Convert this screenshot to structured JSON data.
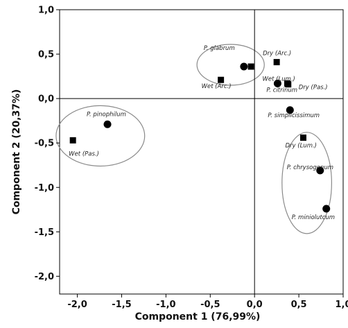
{
  "chart_data": {
    "type": "scatter",
    "xlabel": "Component 1 (76,99%)",
    "ylabel": "Component 2 (20,37%)",
    "xlim": [
      -2.2,
      1.0
    ],
    "ylim": [
      -2.2,
      1.0
    ],
    "xticks": [
      "-2,0",
      "-1,5",
      "-1,0",
      "-0,5",
      "0,0",
      "0,5",
      "1,0"
    ],
    "yticks": [
      "1,0",
      "0,5",
      "0,0",
      "-0,5",
      "-1,0",
      "-1,5",
      "-2,0"
    ],
    "grid": false,
    "reference_lines": {
      "x": 0,
      "y": 0
    },
    "series": [
      {
        "marker": "circle",
        "points": [
          {
            "label": "P. glabrum",
            "x": -0.12,
            "y": 0.36
          },
          {
            "label": "P. citrinum",
            "x": 0.26,
            "y": 0.17
          },
          {
            "label": "P. pinophilum",
            "x": -1.66,
            "y": -0.29
          },
          {
            "label": "P. simplicissimum",
            "x": 0.4,
            "y": -0.13
          },
          {
            "label": "P. chrysogenum",
            "x": 0.74,
            "y": -0.81
          },
          {
            "label": "P. miniolutcum",
            "x": 0.81,
            "y": -1.24
          }
        ]
      },
      {
        "marker": "square",
        "points": [
          {
            "label": "",
            "x": -0.04,
            "y": 0.36
          },
          {
            "label": "Dry (Arc.)",
            "x": 0.25,
            "y": 0.41
          },
          {
            "label": "Wet (Arc.)",
            "x": -0.38,
            "y": 0.21
          },
          {
            "label": "Wet (Lum.)",
            "x": 0.37,
            "y": 0.17
          },
          {
            "label": "Dry (Pas.)",
            "x": 0.38,
            "y": 0.16
          },
          {
            "label": "Wet (Pas.)",
            "x": -2.05,
            "y": -0.47
          },
          {
            "label": "Dry (Lum.)",
            "x": 0.55,
            "y": -0.44
          }
        ]
      }
    ],
    "groups": [
      {
        "center": [
          -0.27,
          0.38
        ],
        "rx": 0.38,
        "ry": 0.23
      },
      {
        "center": [
          -1.74,
          -0.42
        ],
        "rx": 0.5,
        "ry": 0.34
      },
      {
        "center": [
          0.59,
          -0.95
        ],
        "rx": 0.28,
        "ry": 0.57
      }
    ]
  }
}
